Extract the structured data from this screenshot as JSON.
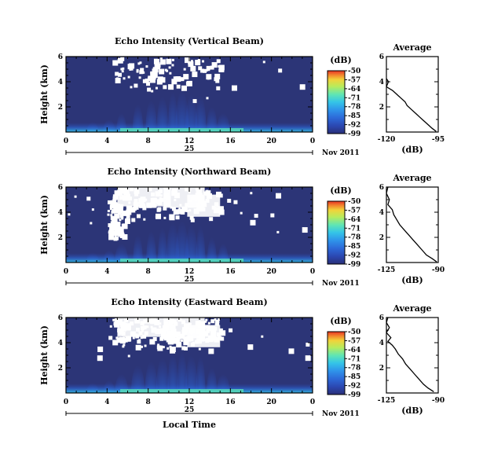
{
  "figure": {
    "date_label": "Nov 2011",
    "xlabel": "Local Time",
    "unit_label": "(dB)",
    "profile_title": "Average",
    "profile_xlabel": "(dB)",
    "day_label": "25"
  },
  "colors": {
    "background_field": "#2c3577",
    "colormap": [
      "#2a2f78",
      "#2b47b0",
      "#2d69d8",
      "#2f95ea",
      "#34c4e8",
      "#5ee5b5",
      "#b8ec5c",
      "#f2d23a",
      "#f27d2c",
      "#e53223"
    ]
  },
  "chart_data": [
    {
      "type": "heatmap",
      "title": "Echo Intensity (Vertical Beam)",
      "ylabel": "Height (km)",
      "xlabel": "",
      "x_ticks": [
        "0",
        "4",
        "8",
        "12",
        "16",
        "20",
        "0"
      ],
      "x_range": [
        0,
        24
      ],
      "y_ticks": [
        "2",
        "4",
        "6"
      ],
      "y_range": [
        0,
        6
      ],
      "colorbar": {
        "label": "(dB)",
        "ticks": [
          "-50",
          "-57",
          "-64",
          "-71",
          "-78",
          "-85",
          "-92",
          "-99"
        ],
        "range": [
          -99,
          -50
        ]
      },
      "profile": {
        "title": "Average",
        "xlabel": "(dB)",
        "x_ticks": [
          "-120",
          "-95"
        ],
        "x_range": [
          -120,
          -95
        ],
        "y_ticks": [
          "2",
          "4",
          "6"
        ],
        "y_range": [
          0,
          6
        ],
        "points": [
          [
            -120.5,
            6.0
          ],
          [
            -121,
            5.5
          ],
          [
            -120,
            5.0
          ],
          [
            -121,
            4.5
          ],
          [
            -119,
            4.0
          ],
          [
            -120,
            3.6
          ],
          [
            -117,
            3.3
          ],
          [
            -115,
            3.0
          ],
          [
            -113,
            2.7
          ],
          [
            -111,
            2.4
          ],
          [
            -110,
            2.1
          ],
          [
            -108,
            1.8
          ],
          [
            -106,
            1.5
          ],
          [
            -104,
            1.2
          ],
          [
            -102,
            0.9
          ],
          [
            -100,
            0.6
          ],
          [
            -98,
            0.3
          ],
          [
            -96,
            0.05
          ]
        ]
      }
    },
    {
      "type": "heatmap",
      "title": "Echo Intensity (Northward Beam)",
      "ylabel": "Height (km)",
      "xlabel": "",
      "x_ticks": [
        "0",
        "4",
        "8",
        "12",
        "16",
        "20",
        "0"
      ],
      "x_range": [
        0,
        24
      ],
      "y_ticks": [
        "2",
        "4",
        "6"
      ],
      "y_range": [
        0,
        6
      ],
      "colorbar": {
        "label": "(dB)",
        "ticks": [
          "-50",
          "-57",
          "-64",
          "-71",
          "-78",
          "-85",
          "-92",
          "-99"
        ],
        "range": [
          -99,
          -50
        ]
      },
      "profile": {
        "title": "Average",
        "xlabel": "(dB)",
        "x_ticks": [
          "-125",
          "-90"
        ],
        "x_range": [
          -125,
          -90
        ],
        "y_ticks": [
          "2",
          "4",
          "6"
        ],
        "y_range": [
          0,
          6
        ],
        "points": [
          [
            -124,
            6.0
          ],
          [
            -125,
            5.5
          ],
          [
            -123,
            5.0
          ],
          [
            -124,
            4.6
          ],
          [
            -121,
            4.2
          ],
          [
            -120,
            3.8
          ],
          [
            -118,
            3.4
          ],
          [
            -116,
            3.0
          ],
          [
            -113,
            2.6
          ],
          [
            -110,
            2.2
          ],
          [
            -107,
            1.8
          ],
          [
            -104,
            1.4
          ],
          [
            -101,
            1.0
          ],
          [
            -98,
            0.6
          ],
          [
            -94,
            0.3
          ],
          [
            -91,
            0.05
          ]
        ]
      }
    },
    {
      "type": "heatmap",
      "title": "Echo Intensity (Eastward Beam)",
      "ylabel": "Height (km)",
      "xlabel": "Local Time",
      "x_ticks": [
        "0",
        "4",
        "8",
        "12",
        "16",
        "20",
        "0"
      ],
      "x_range": [
        0,
        24
      ],
      "y_ticks": [
        "2",
        "4",
        "6"
      ],
      "y_range": [
        0,
        6
      ],
      "colorbar": {
        "label": "(dB)",
        "ticks": [
          "-50",
          "-57",
          "-64",
          "-71",
          "-78",
          "-85",
          "-92",
          "-99"
        ],
        "range": [
          -99,
          -50
        ]
      },
      "profile": {
        "title": "Average",
        "xlabel": "(dB)",
        "x_ticks": [
          "-125",
          "-90"
        ],
        "x_range": [
          -125,
          -90
        ],
        "y_ticks": [
          "2",
          "4",
          "6"
        ],
        "y_range": [
          0,
          6
        ],
        "points": [
          [
            -124,
            6.0
          ],
          [
            -125,
            5.6
          ],
          [
            -123,
            5.2
          ],
          [
            -125,
            4.8
          ],
          [
            -122,
            4.4
          ],
          [
            -124,
            4.1
          ],
          [
            -121,
            3.8
          ],
          [
            -119,
            3.5
          ],
          [
            -117,
            3.1
          ],
          [
            -114,
            2.7
          ],
          [
            -112,
            2.3
          ],
          [
            -109,
            1.9
          ],
          [
            -106,
            1.5
          ],
          [
            -103,
            1.1
          ],
          [
            -100,
            0.7
          ],
          [
            -97,
            0.4
          ],
          [
            -93,
            0.1
          ]
        ]
      }
    }
  ]
}
